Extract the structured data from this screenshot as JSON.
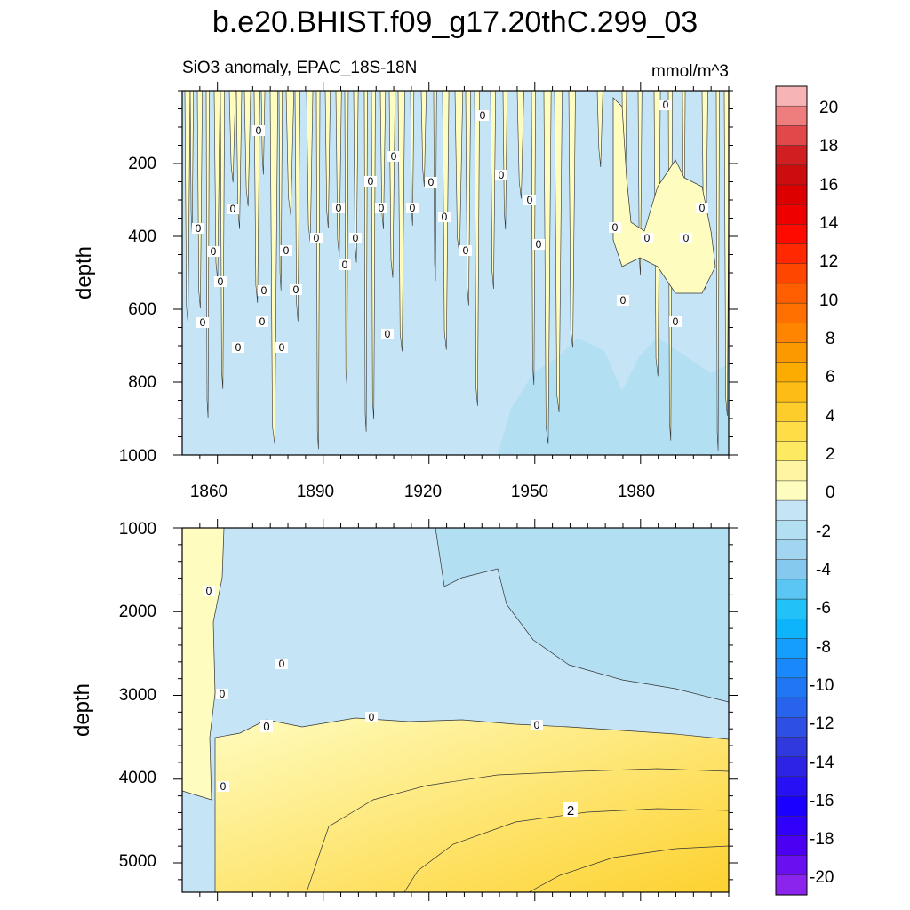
{
  "chart_data": {
    "type": "heatmap",
    "title": "b.e20.BHIST.f09_g17.20thC.299_03",
    "subtitle": "SiO3 anomaly, EPAC_18S-18N",
    "units": "mmol/m^3",
    "xlabel": "",
    "ylabel": "depth",
    "xlim": [
      1850,
      2005
    ],
    "x_ticks": [
      "1860",
      "1890",
      "1920",
      "1950",
      "1980"
    ],
    "panels": [
      {
        "name": "upper",
        "ylim": [
          0,
          1000
        ],
        "y_ticks": [
          "200",
          "400",
          "600",
          "800",
          "1000"
        ],
        "contour_labels": [
          "0"
        ]
      },
      {
        "name": "lower",
        "ylim": [
          1000,
          5350
        ],
        "y_ticks": [
          "1000",
          "2000",
          "3000",
          "4000",
          "5000"
        ],
        "contour_labels": [
          "0",
          "2"
        ]
      }
    ],
    "colorbar": {
      "labels": [
        "20",
        "18",
        "16",
        "14",
        "12",
        "10",
        "8",
        "6",
        "4",
        "2",
        "0",
        "-2",
        "-4",
        "-6",
        "-8",
        "-10",
        "-12",
        "-14",
        "-16",
        "-18",
        "-20"
      ],
      "levels": [
        -20,
        -19,
        -18,
        -17,
        -16,
        -15,
        -14,
        -13,
        -12,
        -11,
        -10,
        -9,
        -8,
        -7,
        -6,
        -5,
        -4,
        -3,
        -2,
        -1,
        0,
        1,
        2,
        3,
        4,
        5,
        6,
        7,
        8,
        9,
        10,
        11,
        12,
        13,
        14,
        15,
        16,
        17,
        18,
        19,
        20
      ],
      "colors_top_to_bottom": [
        "#f6b4b7",
        "#ee7e7e",
        "#e0484a",
        "#d11f21",
        "#cc0c0d",
        "#dd0000",
        "#ee0000",
        "#ff0a00",
        "#ff2800",
        "#ff4600",
        "#ff5f00",
        "#ff7000",
        "#ff8400",
        "#fc9800",
        "#fcac00",
        "#fdbd14",
        "#fdcd2c",
        "#fedd47",
        "#fee963",
        "#fef4a2",
        "#fffcbf",
        "#c5e4f5",
        "#b3dff3",
        "#a2d6f0",
        "#85c9ee",
        "#5bc6f3",
        "#22c1f8",
        "#0db4fc",
        "#149efd",
        "#1a88fd",
        "#2176f6",
        "#2863ee",
        "#2e4fe4",
        "#2f39de",
        "#2c23e7",
        "#2711f4",
        "#1a00ff",
        "#3000fa",
        "#4c00f3",
        "#6a10f0",
        "#8b25ee"
      ]
    }
  }
}
